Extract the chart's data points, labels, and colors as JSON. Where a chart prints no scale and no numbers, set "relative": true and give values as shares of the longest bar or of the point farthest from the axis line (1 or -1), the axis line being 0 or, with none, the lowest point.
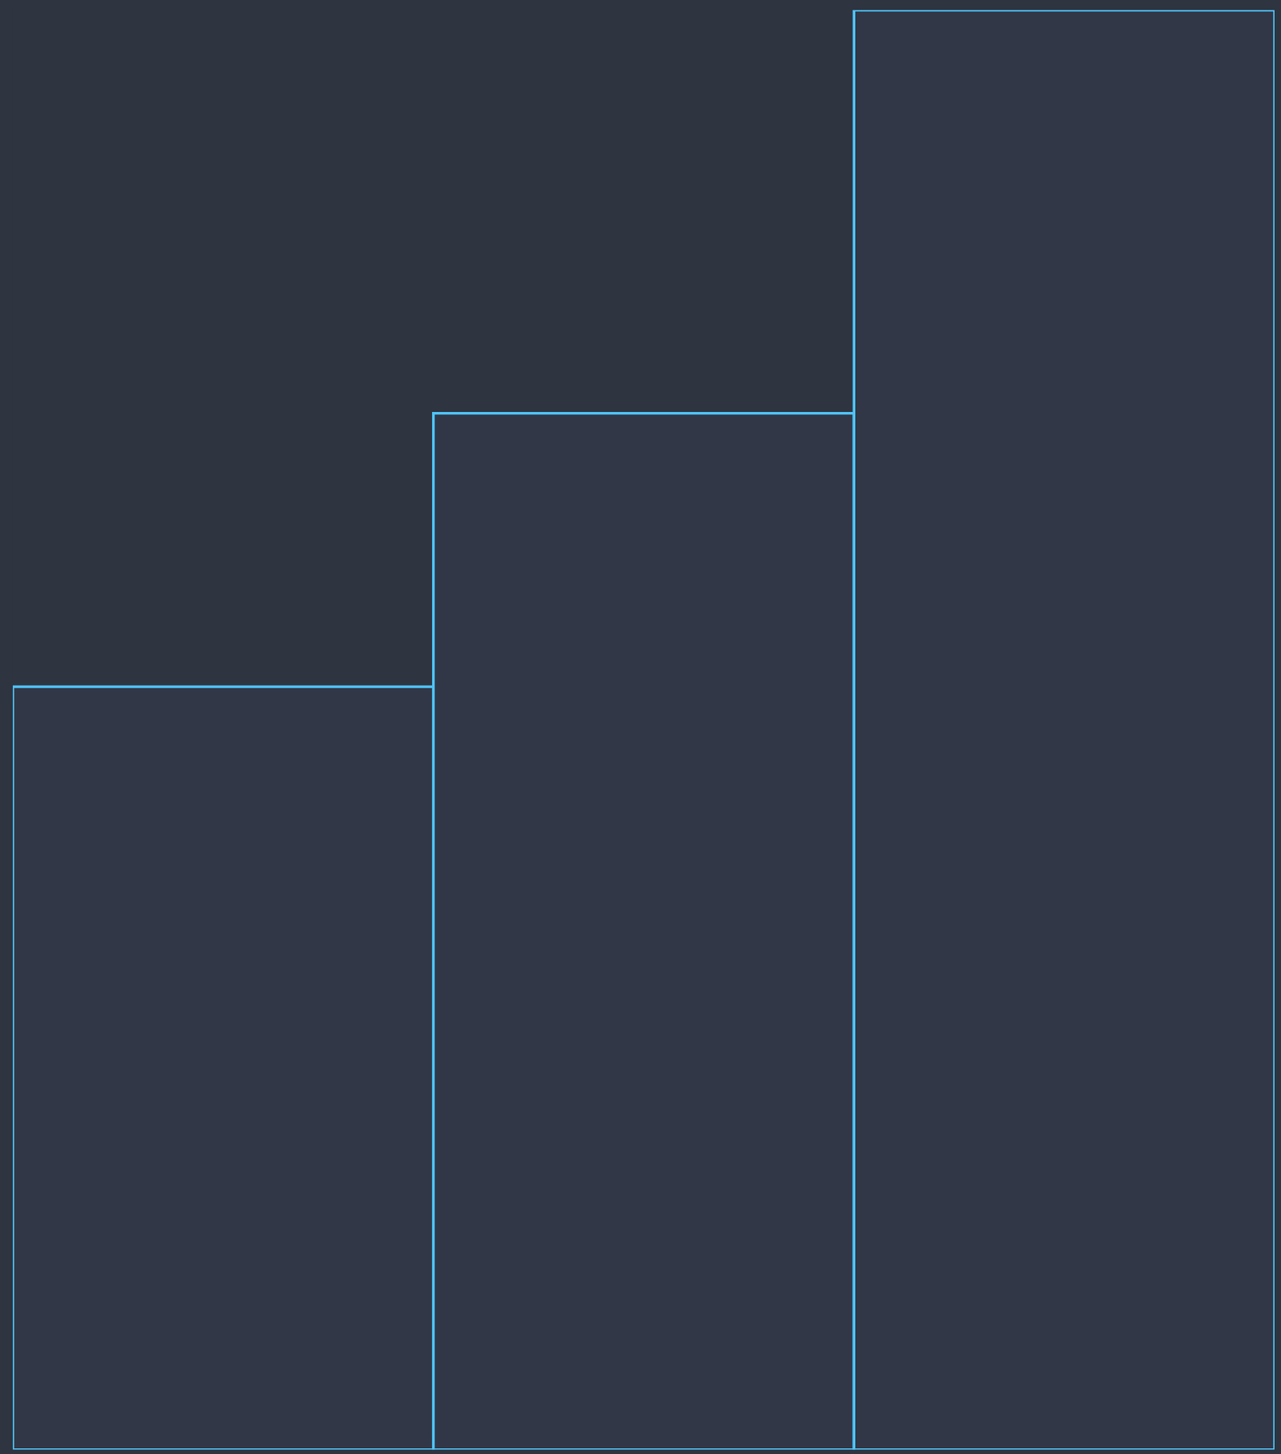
{
  "chart_data": {
    "type": "bar",
    "relative": true,
    "categories": [
      null,
      null,
      null
    ],
    "series": [
      {
        "color": "#313746",
        "values": [
          0.53,
          0.72,
          1
        ]
      }
    ],
    "tick_labels": false,
    "grid": false
  }
}
